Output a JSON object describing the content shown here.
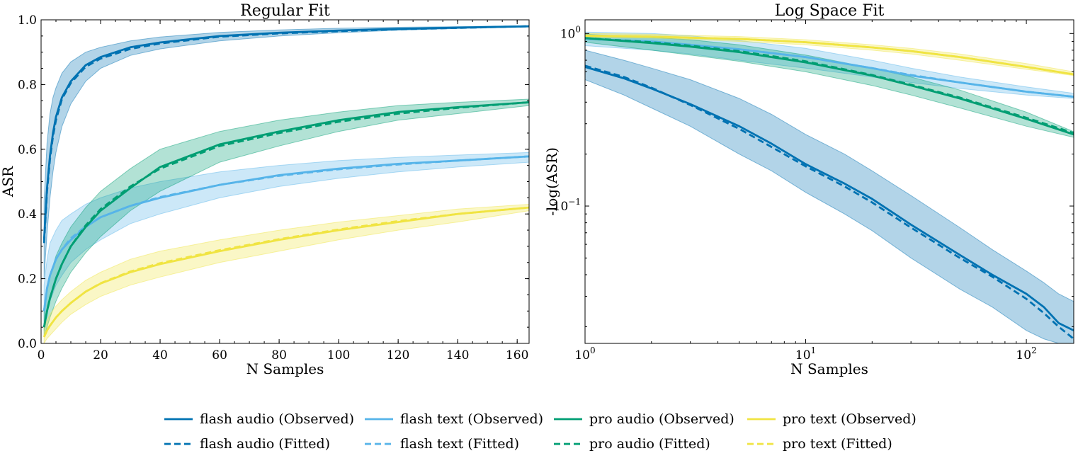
{
  "chart_data": [
    {
      "type": "line",
      "title": "Regular Fit",
      "xlabel": "N Samples",
      "ylabel": "ASR",
      "xscale": "linear",
      "yscale": "linear",
      "xlim": [
        0,
        164
      ],
      "ylim": [
        0.0,
        1.0
      ],
      "xticks": [
        0,
        20,
        40,
        60,
        80,
        100,
        120,
        140,
        160
      ],
      "xtick_labels": [
        "0",
        "20",
        "40",
        "60",
        "80",
        "100",
        "120",
        "140",
        "160"
      ],
      "yticks": [
        0.0,
        0.2,
        0.4,
        0.6,
        0.8,
        1.0
      ],
      "ytick_labels": [
        "0.0",
        "0.2",
        "0.4",
        "0.6",
        "0.8",
        "1.0"
      ],
      "series": [
        {
          "name": "flash audio",
          "color": "#0072B2",
          "x": [
            1,
            2,
            3,
            4,
            5,
            7,
            10,
            15,
            20,
            30,
            40,
            60,
            80,
            100,
            120,
            140,
            164
          ],
          "observed": [
            0.32,
            0.48,
            0.58,
            0.65,
            0.7,
            0.76,
            0.81,
            0.86,
            0.885,
            0.915,
            0.93,
            0.95,
            0.96,
            0.967,
            0.972,
            0.976,
            0.98
          ],
          "fitted": [
            0.31,
            0.47,
            0.57,
            0.64,
            0.69,
            0.755,
            0.805,
            0.855,
            0.88,
            0.91,
            0.927,
            0.948,
            0.958,
            0.965,
            0.971,
            0.975,
            0.98
          ],
          "band_lower": [
            0.2,
            0.34,
            0.45,
            0.53,
            0.59,
            0.67,
            0.74,
            0.81,
            0.85,
            0.89,
            0.91,
            0.935,
            0.95,
            0.96,
            0.968,
            0.973,
            0.978
          ],
          "band_upper": [
            0.44,
            0.62,
            0.71,
            0.76,
            0.79,
            0.835,
            0.87,
            0.9,
            0.915,
            0.935,
            0.947,
            0.961,
            0.969,
            0.974,
            0.977,
            0.979,
            0.982
          ]
        },
        {
          "name": "flash text",
          "color": "#56B4E9",
          "x": [
            1,
            2,
            3,
            5,
            7,
            10,
            15,
            20,
            30,
            40,
            60,
            80,
            100,
            120,
            140,
            164
          ],
          "observed": [
            0.1,
            0.17,
            0.21,
            0.26,
            0.29,
            0.32,
            0.36,
            0.39,
            0.425,
            0.45,
            0.49,
            0.52,
            0.54,
            0.555,
            0.565,
            0.578
          ],
          "fitted": [
            0.1,
            0.17,
            0.21,
            0.26,
            0.29,
            0.325,
            0.362,
            0.39,
            0.425,
            0.452,
            0.49,
            0.518,
            0.538,
            0.553,
            0.565,
            0.578
          ],
          "band_lower": [
            0.04,
            0.09,
            0.13,
            0.18,
            0.21,
            0.25,
            0.29,
            0.32,
            0.37,
            0.4,
            0.45,
            0.485,
            0.51,
            0.53,
            0.545,
            0.56
          ],
          "band_upper": [
            0.18,
            0.26,
            0.31,
            0.35,
            0.38,
            0.4,
            0.43,
            0.45,
            0.48,
            0.5,
            0.53,
            0.55,
            0.565,
            0.575,
            0.582,
            0.59
          ]
        },
        {
          "name": "pro audio",
          "color": "#009E73",
          "x": [
            1,
            2,
            3,
            5,
            7,
            10,
            15,
            20,
            30,
            40,
            60,
            80,
            100,
            120,
            140,
            164
          ],
          "observed": [
            0.05,
            0.1,
            0.14,
            0.2,
            0.245,
            0.3,
            0.36,
            0.41,
            0.48,
            0.545,
            0.615,
            0.655,
            0.69,
            0.715,
            0.73,
            0.745
          ],
          "fitted": [
            0.05,
            0.1,
            0.14,
            0.2,
            0.245,
            0.3,
            0.365,
            0.415,
            0.485,
            0.54,
            0.61,
            0.65,
            0.685,
            0.71,
            0.728,
            0.745
          ],
          "band_lower": [
            0.02,
            0.05,
            0.08,
            0.13,
            0.17,
            0.22,
            0.28,
            0.33,
            0.41,
            0.47,
            0.56,
            0.61,
            0.655,
            0.69,
            0.71,
            0.735
          ],
          "band_upper": [
            0.1,
            0.16,
            0.21,
            0.27,
            0.31,
            0.36,
            0.42,
            0.47,
            0.54,
            0.6,
            0.655,
            0.69,
            0.715,
            0.735,
            0.745,
            0.755
          ]
        },
        {
          "name": "pro text",
          "color": "#F0E442",
          "x": [
            1,
            2,
            3,
            5,
            7,
            10,
            15,
            20,
            30,
            40,
            60,
            80,
            100,
            120,
            140,
            164
          ],
          "observed": [
            0.02,
            0.04,
            0.055,
            0.08,
            0.1,
            0.125,
            0.16,
            0.185,
            0.22,
            0.245,
            0.285,
            0.32,
            0.35,
            0.375,
            0.4,
            0.42
          ],
          "fitted": [
            0.02,
            0.04,
            0.055,
            0.08,
            0.1,
            0.125,
            0.16,
            0.186,
            0.222,
            0.248,
            0.288,
            0.322,
            0.352,
            0.378,
            0.4,
            0.42
          ],
          "band_lower": [
            0.0,
            0.015,
            0.025,
            0.045,
            0.065,
            0.09,
            0.12,
            0.145,
            0.18,
            0.205,
            0.25,
            0.285,
            0.32,
            0.35,
            0.375,
            0.41
          ],
          "band_upper": [
            0.05,
            0.07,
            0.09,
            0.115,
            0.135,
            0.16,
            0.195,
            0.22,
            0.26,
            0.285,
            0.32,
            0.35,
            0.375,
            0.395,
            0.415,
            0.43
          ]
        }
      ]
    },
    {
      "type": "line",
      "title": "Log Space Fit",
      "xlabel": "N Samples",
      "ylabel": "-log(ASR)",
      "xscale": "log",
      "yscale": "log",
      "xlim": [
        1,
        164
      ],
      "ylim": [
        0.016,
        1.2
      ],
      "xticks": [
        1,
        10,
        100
      ],
      "xtick_labels": [
        {
          "base": "10",
          "exp": "0"
        },
        {
          "base": "10",
          "exp": "1"
        },
        {
          "base": "10",
          "exp": "2"
        }
      ],
      "yticks": [
        0.1,
        1
      ],
      "ytick_labels": [
        {
          "base": "10",
          "exp": "−1"
        },
        {
          "base": "10",
          "exp": "0"
        }
      ],
      "series": [
        {
          "name": "flash audio",
          "color": "#0072B2",
          "x": [
            1,
            1.5,
            2,
            3,
            5,
            7,
            10,
            15,
            20,
            30,
            50,
            70,
            100,
            120,
            140,
            164
          ],
          "observed": [
            0.64,
            0.55,
            0.48,
            0.39,
            0.29,
            0.23,
            0.175,
            0.135,
            0.11,
            0.078,
            0.052,
            0.04,
            0.031,
            0.026,
            0.021,
            0.019
          ],
          "fitted": [
            0.65,
            0.56,
            0.485,
            0.385,
            0.28,
            0.22,
            0.17,
            0.13,
            0.105,
            0.075,
            0.05,
            0.039,
            0.029,
            0.024,
            0.02,
            0.017
          ],
          "band_lower": [
            0.54,
            0.44,
            0.37,
            0.29,
            0.2,
            0.16,
            0.12,
            0.09,
            0.072,
            0.05,
            0.033,
            0.026,
            0.019,
            0.017,
            0.016,
            0.016
          ],
          "band_upper": [
            0.8,
            0.7,
            0.63,
            0.54,
            0.42,
            0.34,
            0.26,
            0.2,
            0.16,
            0.115,
            0.075,
            0.056,
            0.042,
            0.036,
            0.031,
            0.028
          ]
        },
        {
          "name": "flash text",
          "color": "#56B4E9",
          "x": [
            1,
            2,
            3,
            5,
            10,
            20,
            30,
            50,
            100,
            164
          ],
          "observed": [
            0.93,
            0.9,
            0.86,
            0.81,
            0.73,
            0.63,
            0.57,
            0.52,
            0.46,
            0.43
          ],
          "fitted": [
            0.93,
            0.9,
            0.86,
            0.81,
            0.73,
            0.63,
            0.575,
            0.52,
            0.46,
            0.43
          ],
          "band_lower": [
            0.85,
            0.8,
            0.76,
            0.7,
            0.63,
            0.56,
            0.52,
            0.48,
            0.44,
            0.42
          ],
          "band_upper": [
            1.02,
            1.0,
            0.97,
            0.91,
            0.82,
            0.7,
            0.63,
            0.56,
            0.49,
            0.45
          ]
        },
        {
          "name": "pro audio",
          "color": "#009E73",
          "x": [
            1,
            2,
            3,
            5,
            10,
            20,
            30,
            50,
            100,
            164
          ],
          "observed": [
            0.94,
            0.88,
            0.84,
            0.78,
            0.68,
            0.57,
            0.5,
            0.42,
            0.32,
            0.26
          ],
          "fitted": [
            0.94,
            0.89,
            0.85,
            0.79,
            0.69,
            0.575,
            0.505,
            0.425,
            0.325,
            0.265
          ],
          "band_lower": [
            0.89,
            0.8,
            0.75,
            0.69,
            0.6,
            0.5,
            0.44,
            0.37,
            0.29,
            0.25
          ],
          "band_upper": [
            0.99,
            0.95,
            0.92,
            0.86,
            0.75,
            0.63,
            0.56,
            0.47,
            0.35,
            0.27
          ]
        },
        {
          "name": "pro text",
          "color": "#F0E442",
          "x": [
            1,
            2,
            3,
            5,
            10,
            20,
            30,
            50,
            100,
            164
          ],
          "observed": [
            0.97,
            0.96,
            0.945,
            0.93,
            0.89,
            0.83,
            0.79,
            0.73,
            0.64,
            0.58
          ],
          "fitted": [
            0.97,
            0.96,
            0.945,
            0.93,
            0.89,
            0.83,
            0.79,
            0.73,
            0.64,
            0.58
          ],
          "band_lower": [
            0.95,
            0.94,
            0.925,
            0.9,
            0.86,
            0.8,
            0.76,
            0.7,
            0.62,
            0.57
          ],
          "band_upper": [
            1.0,
            0.99,
            0.975,
            0.96,
            0.92,
            0.86,
            0.82,
            0.76,
            0.67,
            0.6
          ]
        }
      ]
    }
  ],
  "legend": {
    "placement": "bottom-center",
    "entries": [
      {
        "label": "flash audio (Observed)",
        "color": "#0072B2",
        "style": "solid"
      },
      {
        "label": "flash text (Observed)",
        "color": "#56B4E9",
        "style": "solid"
      },
      {
        "label": "pro audio (Observed)",
        "color": "#009E73",
        "style": "solid"
      },
      {
        "label": "pro text (Observed)",
        "color": "#F0E442",
        "style": "solid"
      },
      {
        "label": "flash audio (Fitted)",
        "color": "#0072B2",
        "style": "dashed"
      },
      {
        "label": "flash text (Fitted)",
        "color": "#56B4E9",
        "style": "dashed"
      },
      {
        "label": "pro audio (Fitted)",
        "color": "#009E73",
        "style": "dashed"
      },
      {
        "label": "pro text (Fitted)",
        "color": "#F0E442",
        "style": "dashed"
      }
    ]
  }
}
